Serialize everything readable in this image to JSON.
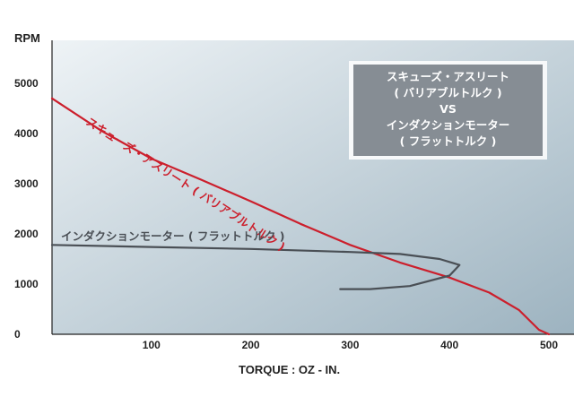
{
  "chart_data": {
    "type": "line",
    "title": "",
    "xlabel": "TORQUE : OZ - IN.",
    "ylabel": "RPM",
    "xlim": [
      0,
      500
    ],
    "ylim": [
      0,
      5000
    ],
    "x_ticks": [
      100,
      200,
      300,
      400,
      500
    ],
    "y_ticks": [
      0,
      1000,
      2000,
      3000,
      4000,
      5000
    ],
    "grid": false,
    "background_gradient": [
      "#eef3f6",
      "#9db3c0"
    ],
    "legend": {
      "placement": "top-right",
      "lines": [
        "スキューズ・アスリート",
        "( バリアブルトルク )",
        "VS",
        "インダクションモーター",
        "( フラットトルク )"
      ]
    },
    "series": [
      {
        "name": "スキューズ・アスリート ( バリアブルトルク )",
        "color": "#cc1f2c",
        "points": [
          [
            0,
            4700
          ],
          [
            50,
            4050
          ],
          [
            100,
            3500
          ],
          [
            150,
            3080
          ],
          [
            200,
            2650
          ],
          [
            250,
            2200
          ],
          [
            300,
            1780
          ],
          [
            350,
            1430
          ],
          [
            400,
            1130
          ],
          [
            440,
            830
          ],
          [
            470,
            480
          ],
          [
            490,
            90
          ],
          [
            500,
            0
          ]
        ]
      },
      {
        "name": "インダクションモーター ( フラットトルク )",
        "color": "#4a4f55",
        "points": [
          [
            0,
            1780
          ],
          [
            100,
            1740
          ],
          [
            200,
            1700
          ],
          [
            300,
            1640
          ],
          [
            350,
            1600
          ],
          [
            390,
            1500
          ],
          [
            410,
            1380
          ],
          [
            400,
            1170
          ],
          [
            360,
            960
          ],
          [
            320,
            900
          ],
          [
            290,
            900
          ]
        ]
      }
    ]
  }
}
